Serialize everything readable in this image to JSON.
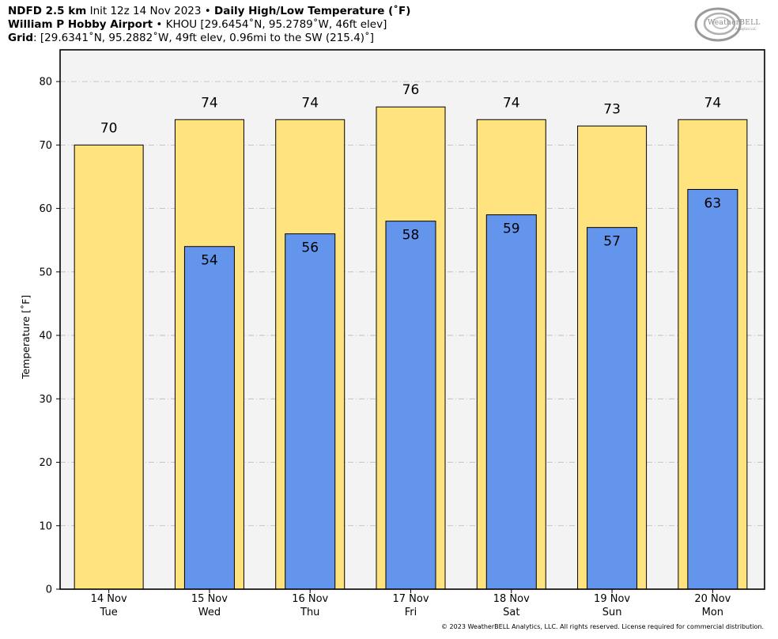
{
  "header": {
    "line1_bold1": "NDFD 2.5 km",
    "line1_text": " Init 12z 14 Nov 2023 • ",
    "line1_bold2": "Daily High/Low Temperature (˚F)",
    "line2_bold": "William P Hobby Airport",
    "line2_text": " • KHOU [29.6454˚N, 95.2789˚W, 46ft elev]",
    "line3_bold": "Grid",
    "line3_text": ": [29.6341˚N, 95.2882˚W, 49ft elev, 0.96mi to the SW (215.4)˚]"
  },
  "logo": {
    "text": "WeatherBELL",
    "sub": "Analytics LLC"
  },
  "footer": "© 2023 WeatherBELL Analytics, LLC. All rights reserved. License required for commercial distribution.",
  "colors": {
    "high": "#FFE37E",
    "low": "#6495ED",
    "plot_bg": "#F4F3F4",
    "grid": "#B8B8B8"
  },
  "chart_data": {
    "type": "bar",
    "ylabel": "Temperature [˚F]",
    "ylim": [
      0,
      85
    ],
    "yticks": [
      0,
      10,
      20,
      30,
      40,
      50,
      60,
      70,
      80
    ],
    "grid": true,
    "categories": [
      [
        "14 Nov",
        "Tue"
      ],
      [
        "15 Nov",
        "Wed"
      ],
      [
        "16 Nov",
        "Thu"
      ],
      [
        "17 Nov",
        "Fri"
      ],
      [
        "18 Nov",
        "Sat"
      ],
      [
        "19 Nov",
        "Sun"
      ],
      [
        "20 Nov",
        "Mon"
      ]
    ],
    "series": [
      {
        "values": [
          70,
          74,
          74,
          76,
          74,
          73,
          74
        ]
      },
      {
        "values": [
          null,
          54,
          56,
          58,
          59,
          57,
          63
        ]
      }
    ]
  }
}
